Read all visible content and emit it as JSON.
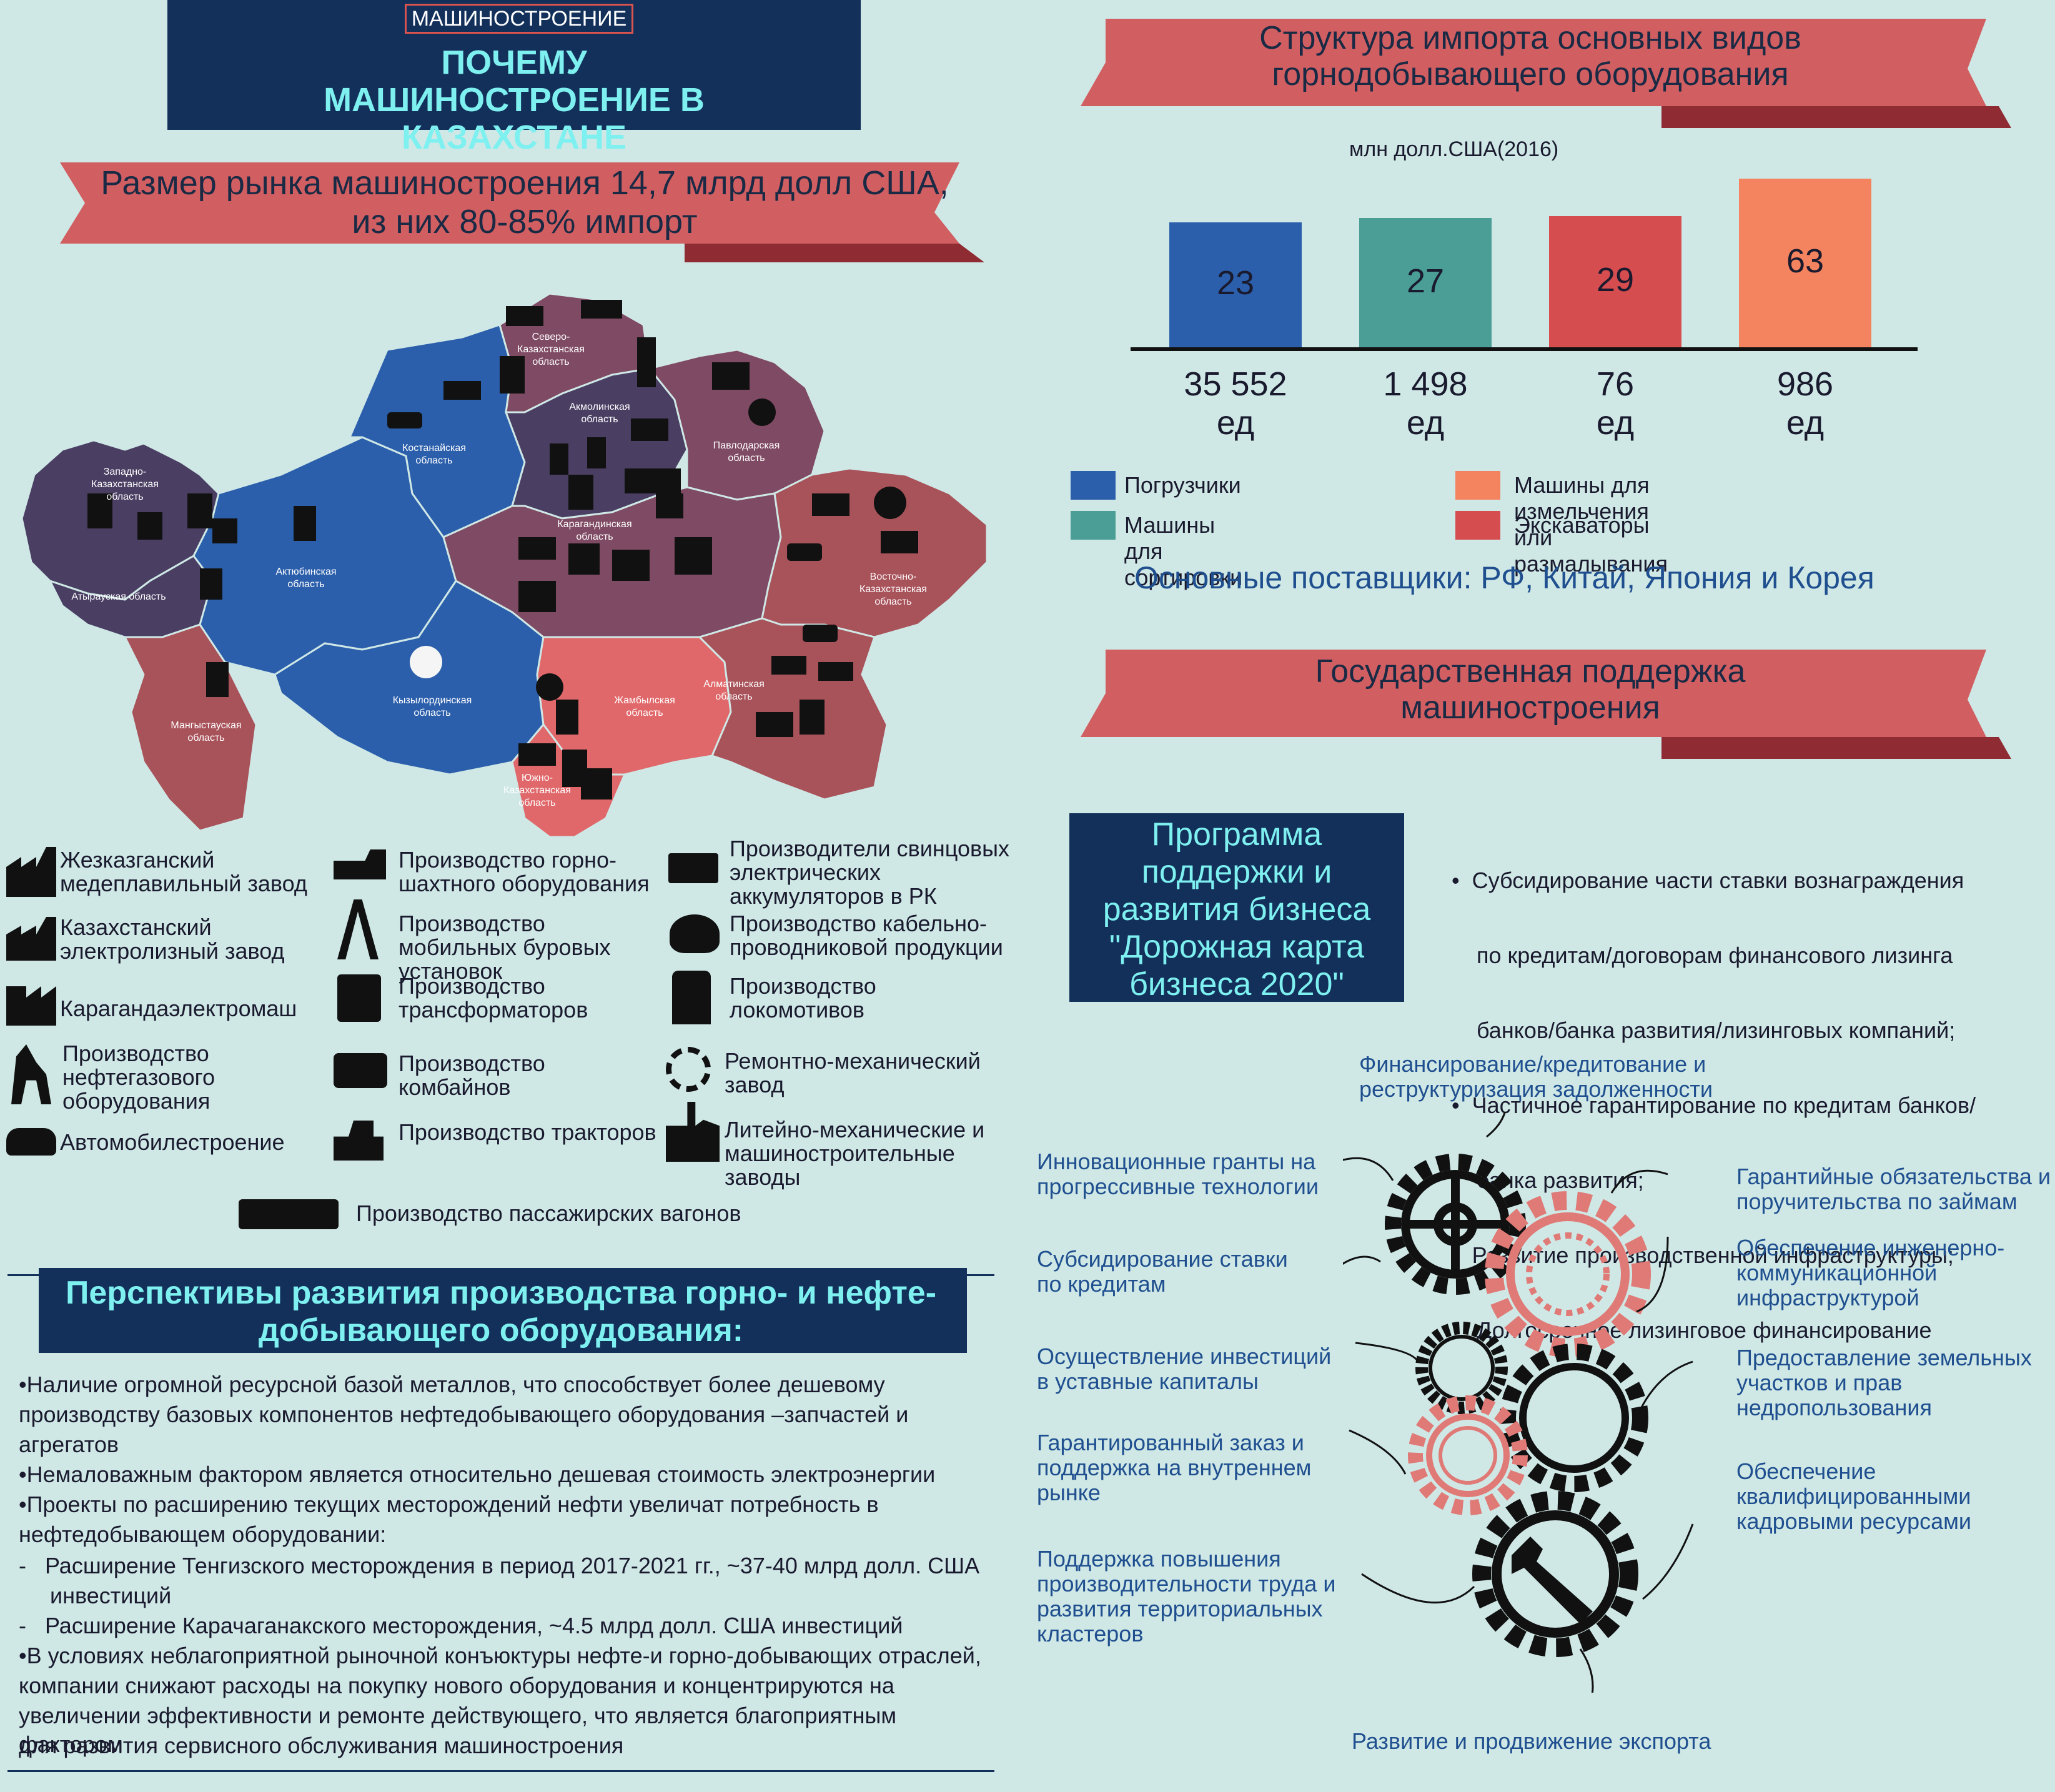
{
  "header": {
    "tag": "МАШИНОСТРОЕНИЕ",
    "title": "ПОЧЕМУ МАШИНОСТРОЕНИЕ В КАЗАХСТАНЕ"
  },
  "market": {
    "line1": "Размер рынка машиностроения 14,7 млрд долл США,",
    "line2": "из них 80-85% импорт"
  },
  "map": {
    "regions": [
      {
        "name": "Северо-Казахстанская область"
      },
      {
        "name": "Костанайская область"
      },
      {
        "name": "Акмолинская область"
      },
      {
        "name": "Павлодарская область"
      },
      {
        "name": "Западно-Казахстанская область"
      },
      {
        "name": "Актюбинская область"
      },
      {
        "name": "Атырауская область"
      },
      {
        "name": "Карагандинская область"
      },
      {
        "name": "Восточно-Казахстанская область"
      },
      {
        "name": "Мангыстауская область"
      },
      {
        "name": "Кызылординская область"
      },
      {
        "name": "Жамбылская область"
      },
      {
        "name": "Алматинская область"
      },
      {
        "name": "Южно-Казахстанская область"
      }
    ],
    "colors": {
      "navy_purple": "#4a3f63",
      "blue": "#2b5fab",
      "mauve": "#7f4a63",
      "red_brown": "#a8525a",
      "salmon": "#e0686a"
    }
  },
  "legend": {
    "col1": [
      {
        "icon": "factory-icon",
        "label": "Жезказганский медеплавильный завод"
      },
      {
        "icon": "factory-icon",
        "label": "Казахстанский электролизный завод"
      },
      {
        "icon": "factory-icon",
        "label": "Карагандаэлектромаш"
      },
      {
        "icon": "oil-pump-icon",
        "label": "Производство нефтегазового оборудования"
      },
      {
        "icon": "car-icon",
        "label": "Автомобилестроение"
      }
    ],
    "col2": [
      {
        "icon": "mining-truck-icon",
        "label": "Производство горно-шахтного оборудования"
      },
      {
        "icon": "drilling-rig-icon",
        "label": "Производство мобильных буровых установок"
      },
      {
        "icon": "transformer-icon",
        "label": "Производство трансформаторов"
      },
      {
        "icon": "combine-icon",
        "label": "Производство комбайнов"
      },
      {
        "icon": "tractor-icon",
        "label": "Производство тракторов"
      }
    ],
    "col3": [
      {
        "icon": "battery-icon",
        "label": "Производители свинцовых электрических аккумуляторов в РК"
      },
      {
        "icon": "cable-icon",
        "label": "Производство кабельно-проводниковой продукции"
      },
      {
        "icon": "locomotive-icon",
        "label": "Производство локомотивов"
      },
      {
        "icon": "gear-icon",
        "label": "Ремонтно-механический завод"
      },
      {
        "icon": "plant-icon",
        "label": "Литейно-механические и машиностроительные заводы"
      }
    ],
    "bottom": {
      "icon": "passenger-car-icon",
      "label": "Производство пассажирских вагонов"
    }
  },
  "perspectives": {
    "title": "Перспективы развития производства горно- и нефте-добывающего оборудования:",
    "lines": [
      "•Наличие огромной ресурсной базой металлов, что способствует более дешевому",
      "производству базовых компонентов нефтедобывающего оборудования –запчастей и",
      "агрегатов",
      "•Немаловажным фактором является относительно дешевая стоимость электроэнергии",
      "•Проекты по расширению текущих месторождений нефти увеличат потребность в",
      "нефтедобывающем оборудовании:",
      "-   Расширение Тенгизского месторождения в период 2017-2021 гг., ~37-40 млрд долл. США",
      "     инвестиций",
      "-   Расширение Карачаганакского месторождения, ~4.5 млрд долл. США инвестиций",
      "•В условиях неблагоприятной рыночной конъюктуры нефте-и горно-добывающих отраслей,",
      "компании снижают расходы на покупку нового оборудования и концентрируются на",
      "увеличении эффективности и ремонте действующего, что является благоприятным фактором",
      "для развития сервисного обслуживания машиностроения"
    ]
  },
  "import": {
    "title_line1": "Структура импорта основных видов",
    "title_line2": "горнодобывающего оборудования",
    "subtitle": "млн долл.США(2016)",
    "units_word": "ед",
    "suppliers": "Основные поставщики: РФ, Китай, Япония и Корея",
    "legend": [
      {
        "label": "Погрузчики",
        "color": "#2b5fab"
      },
      {
        "label": "Машины для сортировки",
        "color": "#4a9e96"
      },
      {
        "label": "Машины для измельчения или размалывания",
        "color": "#f4845f"
      },
      {
        "label": "Экскаваторы",
        "color": "#d64d50"
      }
    ]
  },
  "chart_data": {
    "type": "bar",
    "title": "Структура импорта основных видов горнодобывающего оборудования",
    "ylabel": "млн долл.США(2016)",
    "categories": [
      "Погрузчики",
      "Машины для сортировки",
      "Экскаваторы",
      "Машины для измельчения или размалывания"
    ],
    "values": [
      23,
      27,
      29,
      63
    ],
    "value_labels": [
      "23",
      "27",
      "29",
      "63"
    ],
    "units_labels": [
      "35 552",
      "1 498",
      "76",
      "986"
    ],
    "colors": [
      "#2b5fab",
      "#4a9e96",
      "#d64d50",
      "#f4845f"
    ],
    "ylim": [
      0,
      63
    ]
  },
  "support": {
    "title_line1": "Государственная поддержка",
    "title_line2": "машиностроения",
    "program_lines": [
      "Программа",
      "поддержки и",
      "развития бизнеса",
      "\"Дорожная карта",
      "бизнеса 2020\""
    ],
    "bullets": [
      "•  Субсидирование части ставки вознаграждения",
      "    по кредитам/договорам финансового лизинга",
      "    банков/банка развития/лизинговых компаний;",
      "•  Частичное гарантирование по кредитам банков/",
      "    банка развития;",
      "•  Развитие производственной инфраструктуры;",
      "    Долгосрочное лизинговое финансирование"
    ]
  },
  "gears": {
    "top": [
      "Финансирование/кредитование и",
      "реструктуризация задолженности"
    ],
    "left": [
      [
        "Инновационные гранты на",
        "прогрессивные технологии"
      ],
      [
        "Субсидирование ставки",
        "по кредитам"
      ],
      [
        "Осуществление инвестиций",
        "в уставные капиталы"
      ],
      [
        "Гарантированный заказ и",
        "поддержка на внутреннем",
        "рынке"
      ],
      [
        "Поддержка повышения",
        "производительности труда и",
        "развития территориальных",
        "кластеров"
      ]
    ],
    "right": [
      [
        "Гарантийные обязательства и",
        "поручительства по займам"
      ],
      [
        "Обеспечение инженерно-",
        "коммуникационной",
        "инфраструктурой"
      ],
      [
        "Предоставление земельных",
        "участков и прав",
        "недропользования"
      ],
      [
        "Обеспечение",
        "квалифицированными",
        "кадровыми ресурсами"
      ]
    ],
    "bottom": "Развитие и продвижение экспорта"
  }
}
